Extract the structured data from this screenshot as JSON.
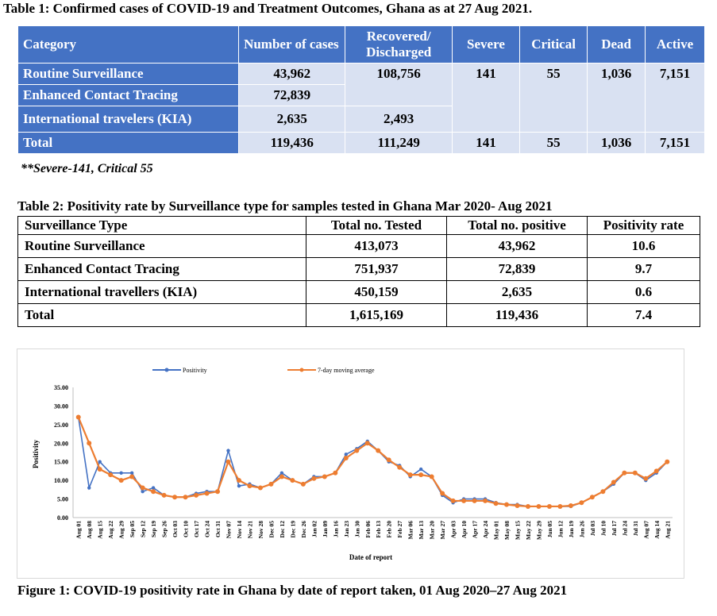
{
  "table1": {
    "title": "Table 1: Confirmed cases of COVID-19 and Treatment Outcomes, Ghana as at 27 Aug 2021.",
    "headers": [
      "Category",
      "Number of cases",
      "Recovered/ Discharged",
      "Severe",
      "Critical",
      "Dead",
      "Active"
    ],
    "rows": [
      {
        "category": "Routine Surveillance",
        "cases": "43,962",
        "recovered": "108,756",
        "severe": "141",
        "critical": "55",
        "dead": "1,036",
        "active": "7,151"
      },
      {
        "category": "Enhanced Contact Tracing",
        "cases": "72,839"
      },
      {
        "category": "International travelers (KIA)",
        "cases": "2,635",
        "recovered": "2,493"
      }
    ],
    "total": {
      "category": "Total",
      "cases": "119,436",
      "recovered": "111,249",
      "severe": "141",
      "critical": "55",
      "dead": "1,036",
      "active": "7,151"
    },
    "note": "**Severe-141, Critical 55",
    "colors": {
      "header": "#4472c4",
      "cell": "#d9e1f2"
    }
  },
  "table2": {
    "title": "Table 2: Positivity rate by Surveillance type for samples tested in Ghana Mar 2020- Aug 2021",
    "headers": [
      "Surveillance Type",
      "Total no. Tested",
      "Total no. positive",
      "Positivity rate"
    ],
    "rows": [
      {
        "type": "Routine Surveillance",
        "tested": "413,073",
        "positive": "43,962",
        "rate": "10.6"
      },
      {
        "type": "Enhanced Contact Tracing",
        "tested": "751,937",
        "positive": "72,839",
        "rate": "9.7"
      },
      {
        "type": "International travellers (KIA)",
        "tested": "450,159",
        "positive": "2,635",
        "rate": "0.6"
      },
      {
        "type": "Total",
        "tested": "1,615,169",
        "positive": "119,436",
        "rate": "7.4"
      }
    ]
  },
  "figure": {
    "caption": "Figure 1: COVID-19 positivity rate in Ghana by date of report taken, 01 Aug 2020–27 Aug 2021"
  },
  "chart_data": {
    "type": "line",
    "xlabel": "Date of report",
    "ylabel": "Positivity",
    "ylim": [
      0,
      35
    ],
    "yticks": [
      "0.00",
      "5.00",
      "10.00",
      "15.00",
      "20.00",
      "25.00",
      "30.00",
      "35.00"
    ],
    "legend_position": "top",
    "categories": [
      "Aug 01",
      "Aug 08",
      "Aug 15",
      "Aug 22",
      "Aug 29",
      "Sep 05",
      "Sep 12",
      "Sep 19",
      "Sep 26",
      "Oct 03",
      "Oct 10",
      "Oct 17",
      "Oct 24",
      "Oct 31",
      "Nov 07",
      "Nov 14",
      "Nov 21",
      "Nov 28",
      "Dec 05",
      "Dec 12",
      "Dec 19",
      "Dec 26",
      "Jan 02",
      "Jan 09",
      "Jan 16",
      "Jan 23",
      "Jan 30",
      "Feb 06",
      "Feb 13",
      "Feb 20",
      "Feb 27",
      "Mar 06",
      "Mar 13",
      "Mar 20",
      "Mar 27",
      "Apr 03",
      "Apr 10",
      "Apr 17",
      "Apr 24",
      "May 01",
      "May 08",
      "May 15",
      "May 22",
      "May 29",
      "Jun 05",
      "Jun 12",
      "Jun 19",
      "Jun 26",
      "Jul 03",
      "Jul 10",
      "Jul 17",
      "Jul 24",
      "Jul 31",
      "Aug 07",
      "Aug 14",
      "Aug 21"
    ],
    "series": [
      {
        "name": "Positivity",
        "color": "#4472c4",
        "values": [
          27.0,
          8.0,
          15.0,
          12.0,
          12.0,
          12.0,
          7.0,
          8.0,
          6.0,
          5.5,
          5.5,
          6.5,
          7.0,
          7.0,
          18.0,
          8.5,
          9.0,
          8.0,
          9.0,
          12.0,
          10.0,
          9.0,
          11.0,
          11.0,
          12.0,
          17.0,
          18.5,
          20.5,
          18.0,
          15.0,
          14.0,
          11.0,
          13.0,
          11.0,
          6.0,
          4.0,
          5.0,
          5.0,
          5.0,
          4.0,
          3.5,
          3.5,
          3.0,
          3.0,
          3.0,
          3.0,
          3.0,
          4.0,
          5.5,
          7.0,
          9.0,
          12.0,
          12.0,
          10.0,
          12.0,
          15.0
        ]
      },
      {
        "name": "7-day moving average",
        "color": "#ed7d31",
        "values": [
          27.0,
          20.0,
          13.0,
          11.5,
          10.0,
          11.0,
          8.0,
          7.0,
          6.0,
          5.5,
          5.5,
          6.0,
          6.5,
          7.0,
          15.0,
          10.0,
          8.5,
          8.0,
          9.0,
          11.0,
          10.0,
          9.0,
          10.5,
          11.0,
          12.0,
          16.0,
          18.0,
          20.0,
          18.0,
          15.5,
          13.5,
          11.5,
          11.5,
          11.0,
          6.5,
          4.5,
          4.5,
          4.5,
          4.5,
          3.8,
          3.5,
          3.2,
          3.0,
          3.0,
          3.0,
          3.0,
          3.2,
          4.0,
          5.5,
          7.0,
          9.5,
          12.0,
          12.0,
          10.5,
          12.5,
          15.0
        ]
      }
    ]
  }
}
